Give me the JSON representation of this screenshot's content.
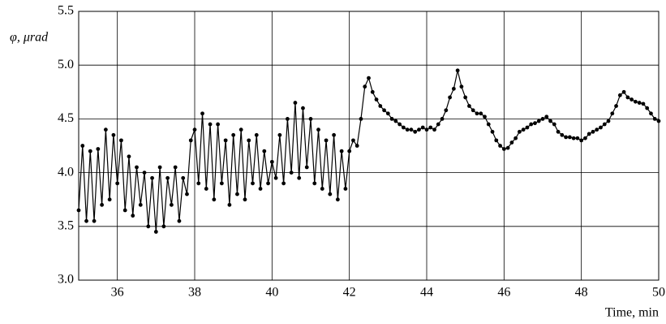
{
  "chart_data": {
    "type": "line",
    "x_label": "Time, min",
    "y_label": "φ, μrad",
    "x": [
      35.0,
      35.1,
      35.2,
      35.3,
      35.4,
      35.5,
      35.6,
      35.7,
      35.8,
      35.9,
      36.0,
      36.1,
      36.2,
      36.3,
      36.4,
      36.5,
      36.6,
      36.7,
      36.8,
      36.9,
      37.0,
      37.1,
      37.2,
      37.3,
      37.4,
      37.5,
      37.6,
      37.7,
      37.8,
      37.9,
      38.0,
      38.1,
      38.2,
      38.3,
      38.4,
      38.5,
      38.6,
      38.7,
      38.8,
      38.9,
      39.0,
      39.1,
      39.2,
      39.3,
      39.4,
      39.5,
      39.6,
      39.7,
      39.8,
      39.9,
      40.0,
      40.1,
      40.2,
      40.3,
      40.4,
      40.5,
      40.6,
      40.7,
      40.8,
      40.9,
      41.0,
      41.1,
      41.2,
      41.3,
      41.4,
      41.5,
      41.6,
      41.7,
      41.8,
      41.9,
      42.0,
      42.1,
      42.2,
      42.3,
      42.4,
      42.5,
      42.6,
      42.7,
      42.8,
      42.9,
      43.0,
      43.1,
      43.2,
      43.3,
      43.4,
      43.5,
      43.6,
      43.7,
      43.8,
      43.9,
      44.0,
      44.1,
      44.2,
      44.3,
      44.4,
      44.5,
      44.6,
      44.7,
      44.8,
      44.9,
      45.0,
      45.1,
      45.2,
      45.3,
      45.4,
      45.5,
      45.6,
      45.7,
      45.8,
      45.9,
      46.0,
      46.1,
      46.2,
      46.3,
      46.4,
      46.5,
      46.6,
      46.7,
      46.8,
      46.9,
      47.0,
      47.1,
      47.2,
      47.3,
      47.4,
      47.5,
      47.6,
      47.7,
      47.8,
      47.9,
      48.0,
      48.1,
      48.2,
      48.3,
      48.4,
      48.5,
      48.6,
      48.7,
      48.8,
      48.9,
      49.0,
      49.1,
      49.2,
      49.3,
      49.4,
      49.5,
      49.6,
      49.7,
      49.8,
      49.9,
      50.0
    ],
    "series": [
      {
        "color": "#000000",
        "values": [
          3.65,
          4.25,
          3.55,
          4.2,
          3.55,
          4.22,
          3.7,
          4.4,
          3.75,
          4.35,
          3.9,
          4.3,
          3.65,
          4.15,
          3.6,
          4.05,
          3.7,
          4.0,
          3.5,
          3.95,
          3.45,
          4.05,
          3.5,
          3.95,
          3.7,
          4.05,
          3.55,
          3.95,
          3.8,
          4.3,
          4.4,
          3.9,
          4.55,
          3.85,
          4.45,
          3.75,
          4.45,
          3.9,
          4.3,
          3.7,
          4.35,
          3.8,
          4.4,
          3.75,
          4.3,
          3.9,
          4.35,
          3.85,
          4.2,
          3.9,
          4.1,
          3.95,
          4.35,
          3.9,
          4.5,
          4.0,
          4.65,
          3.95,
          4.6,
          4.05,
          4.5,
          3.9,
          4.4,
          3.85,
          4.3,
          3.8,
          4.35,
          3.75,
          4.2,
          3.85,
          4.2,
          4.3,
          4.25,
          4.5,
          4.8,
          4.88,
          4.75,
          4.68,
          4.62,
          4.58,
          4.55,
          4.5,
          4.48,
          4.45,
          4.42,
          4.4,
          4.4,
          4.38,
          4.4,
          4.42,
          4.4,
          4.42,
          4.4,
          4.45,
          4.5,
          4.58,
          4.7,
          4.78,
          4.95,
          4.8,
          4.7,
          4.62,
          4.58,
          4.55,
          4.55,
          4.52,
          4.45,
          4.38,
          4.3,
          4.25,
          4.22,
          4.23,
          4.28,
          4.32,
          4.38,
          4.4,
          4.42,
          4.45,
          4.46,
          4.48,
          4.5,
          4.52,
          4.48,
          4.45,
          4.38,
          4.35,
          4.33,
          4.33,
          4.32,
          4.32,
          4.3,
          4.32,
          4.36,
          4.38,
          4.4,
          4.42,
          4.45,
          4.48,
          4.55,
          4.62,
          4.72,
          4.75,
          4.7,
          4.68,
          4.66,
          4.65,
          4.64,
          4.6,
          4.55,
          4.5,
          4.48
        ]
      }
    ],
    "xlim": [
      35,
      50
    ],
    "xticks": [
      36,
      38,
      40,
      42,
      44,
      46,
      48,
      50
    ],
    "ylim": [
      3,
      5.5
    ],
    "yticks": [
      {
        "value": 3,
        "label": "3.0"
      },
      {
        "value": 3.5,
        "label": "3.5"
      },
      {
        "value": 4,
        "label": "4.0"
      },
      {
        "value": 4.5,
        "label": "4.5"
      },
      {
        "value": 5,
        "label": "5.0"
      },
      {
        "value": 5.5,
        "label": "5.5"
      }
    ],
    "grid": true
  }
}
